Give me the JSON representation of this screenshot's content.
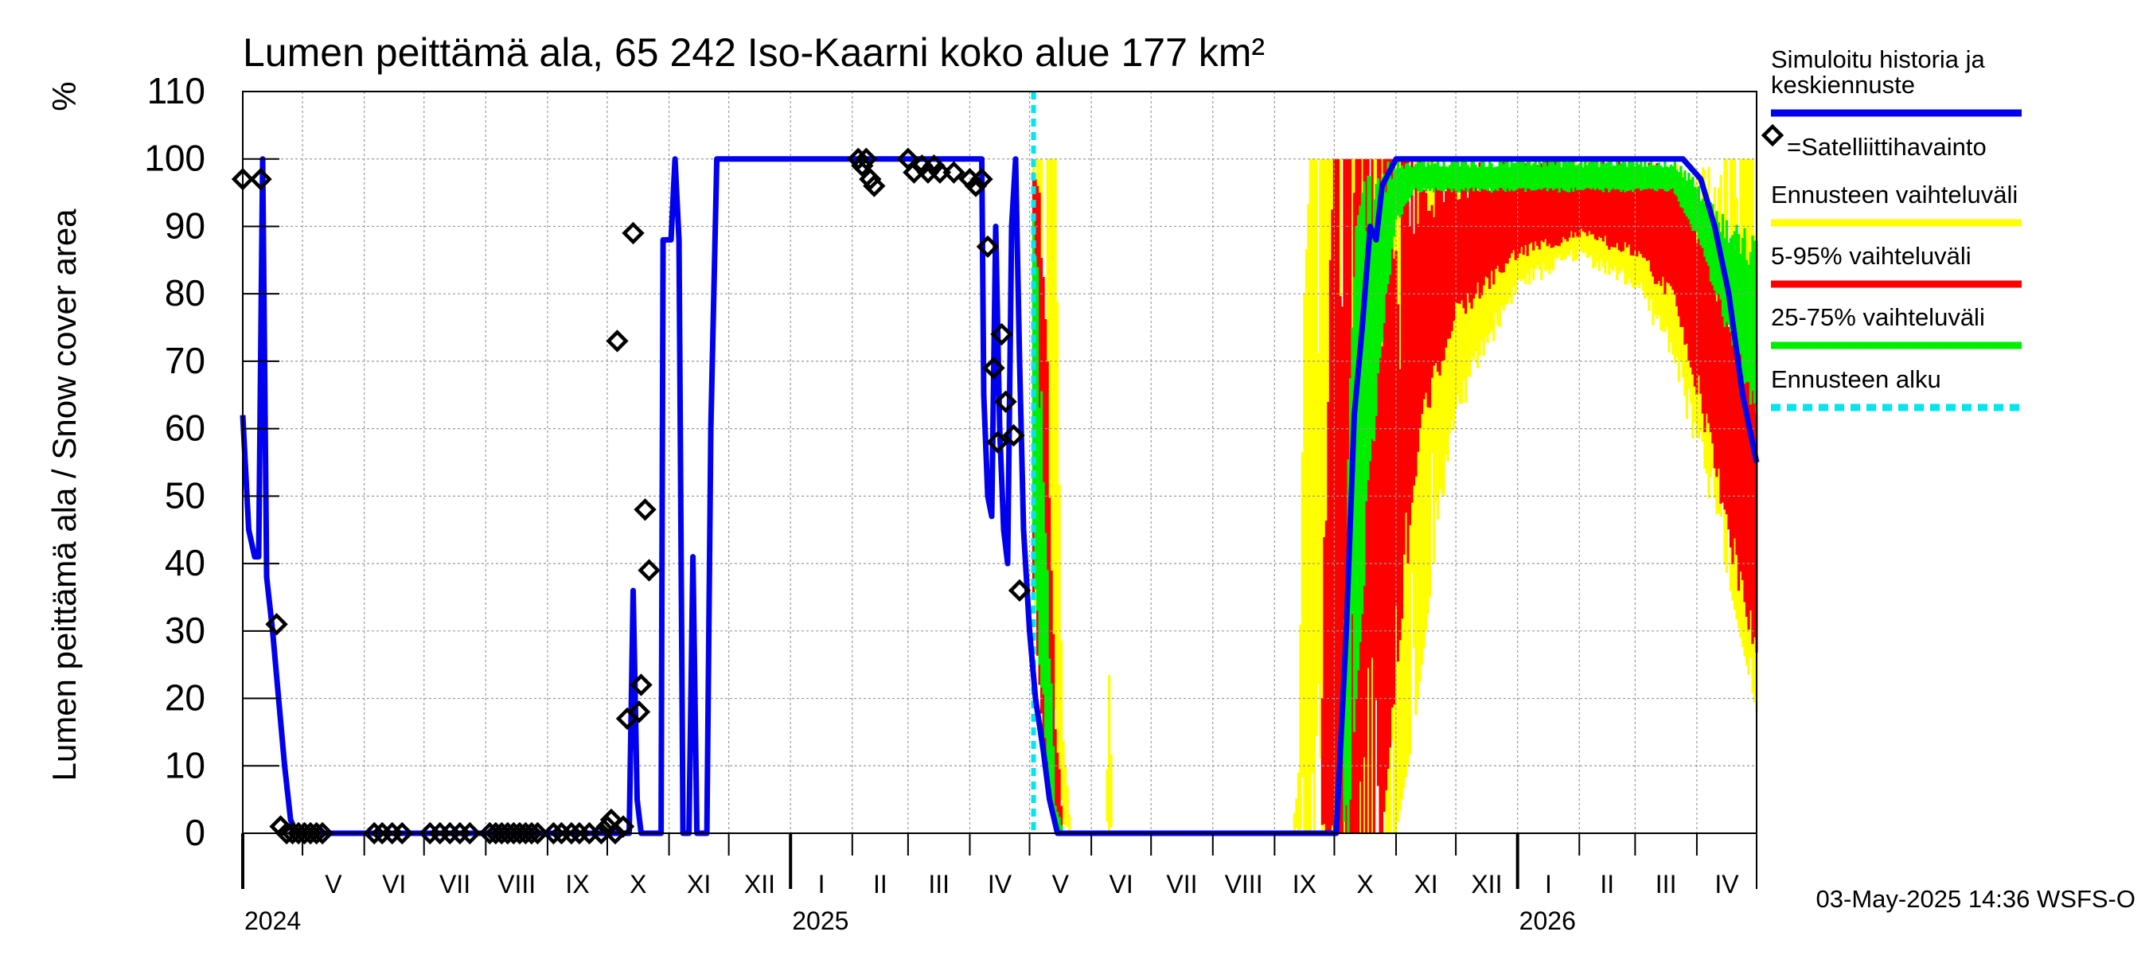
{
  "chart_data": {
    "type": "area",
    "title": "Lumen peittämä ala, 65 242 Iso-Kaarni koko alue 177 km²",
    "ylabel": "Lumen peittämä ala / Snow cover area",
    "yunit": "%",
    "ylim": [
      0,
      110
    ],
    "yticks": [
      0,
      10,
      20,
      30,
      40,
      50,
      60,
      70,
      80,
      90,
      100,
      110
    ],
    "xlim": [
      "2024-04-01",
      "2026-05-01"
    ],
    "grid": true,
    "legend_position": "right",
    "months": [
      {
        "label": "V",
        "start": "2024-05-01"
      },
      {
        "label": "VI",
        "start": "2024-06-01"
      },
      {
        "label": "VII",
        "start": "2024-07-01"
      },
      {
        "label": "VIII",
        "start": "2024-08-01"
      },
      {
        "label": "IX",
        "start": "2024-09-01"
      },
      {
        "label": "X",
        "start": "2024-10-01"
      },
      {
        "label": "XI",
        "start": "2024-11-01"
      },
      {
        "label": "XII",
        "start": "2024-12-01"
      },
      {
        "label": "I",
        "start": "2025-01-01"
      },
      {
        "label": "II",
        "start": "2025-02-01"
      },
      {
        "label": "III",
        "start": "2025-03-01"
      },
      {
        "label": "IV",
        "start": "2025-04-01"
      },
      {
        "label": "V",
        "start": "2025-05-01"
      },
      {
        "label": "VI",
        "start": "2025-06-01"
      },
      {
        "label": "VII",
        "start": "2025-07-01"
      },
      {
        "label": "VIII",
        "start": "2025-08-01"
      },
      {
        "label": "IX",
        "start": "2025-09-01"
      },
      {
        "label": "X",
        "start": "2025-10-01"
      },
      {
        "label": "XI",
        "start": "2025-11-01"
      },
      {
        "label": "XII",
        "start": "2025-12-01"
      },
      {
        "label": "I",
        "start": "2026-01-01"
      },
      {
        "label": "II",
        "start": "2026-02-01"
      },
      {
        "label": "III",
        "start": "2026-03-01"
      },
      {
        "label": "IV",
        "start": "2026-04-01"
      }
    ],
    "years": [
      {
        "label": "2024",
        "date": "2024-04-01"
      },
      {
        "label": "2025",
        "date": "2025-01-01"
      },
      {
        "label": "2026",
        "date": "2026-01-01"
      }
    ],
    "forecast_start": "2025-05-03",
    "series": [
      {
        "name": "Simuloitu historia ja keskiennuste",
        "color": "#0000ee",
        "points": [
          [
            "2024-04-01",
            62
          ],
          [
            "2024-04-04",
            45
          ],
          [
            "2024-04-07",
            41
          ],
          [
            "2024-04-09",
            41
          ],
          [
            "2024-04-11",
            100
          ],
          [
            "2024-04-13",
            38
          ],
          [
            "2024-04-16",
            30
          ],
          [
            "2024-04-19",
            20
          ],
          [
            "2024-04-22",
            10
          ],
          [
            "2024-04-25",
            2
          ],
          [
            "2024-04-28",
            0
          ],
          [
            "2024-10-12",
            0
          ],
          [
            "2024-10-14",
            36
          ],
          [
            "2024-10-16",
            5
          ],
          [
            "2024-10-18",
            0
          ],
          [
            "2024-10-28",
            0
          ],
          [
            "2024-10-29",
            88
          ],
          [
            "2024-11-02",
            88
          ],
          [
            "2024-11-04",
            100
          ],
          [
            "2024-11-06",
            88
          ],
          [
            "2024-11-08",
            0
          ],
          [
            "2024-11-11",
            0
          ],
          [
            "2024-11-13",
            41
          ],
          [
            "2024-11-15",
            0
          ],
          [
            "2024-11-20",
            0
          ],
          [
            "2024-11-22",
            60
          ],
          [
            "2024-11-25",
            100
          ],
          [
            "2025-04-05",
            100
          ],
          [
            "2025-04-07",
            100
          ],
          [
            "2025-04-08",
            65
          ],
          [
            "2025-04-10",
            50
          ],
          [
            "2025-04-12",
            47
          ],
          [
            "2025-04-14",
            90
          ],
          [
            "2025-04-16",
            60
          ],
          [
            "2025-04-18",
            45
          ],
          [
            "2025-04-20",
            40
          ],
          [
            "2025-04-22",
            90
          ],
          [
            "2025-04-24",
            100
          ],
          [
            "2025-04-26",
            70
          ],
          [
            "2025-04-28",
            45
          ],
          [
            "2025-05-01",
            30
          ],
          [
            "2025-05-04",
            20
          ],
          [
            "2025-05-08",
            12
          ],
          [
            "2025-05-11",
            5
          ],
          [
            "2025-05-15",
            0
          ],
          [
            "2025-09-27",
            0
          ],
          [
            "2025-10-02",
            0
          ],
          [
            "2025-10-07",
            30
          ],
          [
            "2025-10-11",
            62
          ],
          [
            "2025-10-15",
            75
          ],
          [
            "2025-10-19",
            90
          ],
          [
            "2025-10-22",
            88
          ],
          [
            "2025-10-25",
            96
          ],
          [
            "2025-11-01",
            100
          ],
          [
            "2026-03-25",
            100
          ],
          [
            "2026-04-03",
            97
          ],
          [
            "2026-04-10",
            90
          ],
          [
            "2026-04-17",
            80
          ],
          [
            "2026-04-24",
            65
          ],
          [
            "2026-05-01",
            55
          ]
        ]
      }
    ],
    "satellite_observations": {
      "name": "=Satelliittihavainto",
      "points": [
        [
          "2024-04-01",
          97
        ],
        [
          "2024-04-10",
          97
        ],
        [
          "2024-04-18",
          31
        ],
        [
          "2024-04-20",
          1
        ],
        [
          "2024-04-23",
          0
        ],
        [
          "2024-04-26",
          0
        ],
        [
          "2024-04-29",
          0
        ],
        [
          "2024-05-02",
          0
        ],
        [
          "2024-05-05",
          0
        ],
        [
          "2024-05-08",
          0
        ],
        [
          "2024-05-11",
          0
        ],
        [
          "2024-06-06",
          0
        ],
        [
          "2024-06-10",
          0
        ],
        [
          "2024-06-15",
          0
        ],
        [
          "2024-06-20",
          0
        ],
        [
          "2024-07-04",
          0
        ],
        [
          "2024-07-09",
          0
        ],
        [
          "2024-07-14",
          0
        ],
        [
          "2024-07-19",
          0
        ],
        [
          "2024-07-24",
          0
        ],
        [
          "2024-08-03",
          0
        ],
        [
          "2024-08-06",
          0
        ],
        [
          "2024-08-09",
          0
        ],
        [
          "2024-08-12",
          0
        ],
        [
          "2024-08-15",
          0
        ],
        [
          "2024-08-18",
          0
        ],
        [
          "2024-08-21",
          0
        ],
        [
          "2024-08-24",
          0
        ],
        [
          "2024-08-27",
          0
        ],
        [
          "2024-09-04",
          0
        ],
        [
          "2024-09-08",
          0
        ],
        [
          "2024-09-13",
          0
        ],
        [
          "2024-09-17",
          0
        ],
        [
          "2024-09-22",
          0
        ],
        [
          "2024-09-28",
          0
        ],
        [
          "2024-10-01",
          1
        ],
        [
          "2024-10-03",
          2
        ],
        [
          "2024-10-05",
          0
        ],
        [
          "2024-10-06",
          73
        ],
        [
          "2024-10-09",
          1
        ],
        [
          "2024-10-11",
          17
        ],
        [
          "2024-10-14",
          89
        ],
        [
          "2024-10-17",
          18
        ],
        [
          "2024-10-18",
          22
        ],
        [
          "2024-10-20",
          48
        ],
        [
          "2024-10-22",
          39
        ],
        [
          "2025-02-04",
          100
        ],
        [
          "2025-02-06",
          99
        ],
        [
          "2025-02-08",
          100
        ],
        [
          "2025-02-10",
          97
        ],
        [
          "2025-02-12",
          96
        ],
        [
          "2025-03-01",
          100
        ],
        [
          "2025-03-04",
          98
        ],
        [
          "2025-03-08",
          99
        ],
        [
          "2025-03-11",
          98
        ],
        [
          "2025-03-14",
          99
        ],
        [
          "2025-03-17",
          98
        ],
        [
          "2025-03-24",
          98
        ],
        [
          "2025-04-01",
          97
        ],
        [
          "2025-04-04",
          96
        ],
        [
          "2025-04-07",
          97
        ],
        [
          "2025-04-10",
          87
        ],
        [
          "2025-04-13",
          69
        ],
        [
          "2025-04-15",
          58
        ],
        [
          "2025-04-17",
          74
        ],
        [
          "2025-04-19",
          64
        ],
        [
          "2025-04-23",
          59
        ],
        [
          "2025-04-26",
          36
        ]
      ]
    },
    "bands": [
      {
        "name": "Ennusteen vaihteluväli",
        "color": "#ffff00",
        "points": [
          [
            "2025-05-03",
            100,
            38
          ],
          [
            "2025-05-06",
            100,
            25
          ],
          [
            "2025-05-10",
            100,
            8
          ],
          [
            "2025-05-14",
            100,
            0
          ],
          [
            "2025-05-18",
            15,
            0
          ],
          [
            "2025-05-22",
            0,
            0
          ],
          [
            "2025-06-08",
            0,
            0
          ],
          [
            "2025-06-10",
            25,
            0
          ],
          [
            "2025-06-12",
            0,
            0
          ],
          [
            "2025-09-10",
            0,
            0
          ],
          [
            "2025-09-13",
            10,
            0
          ],
          [
            "2025-09-16",
            80,
            0
          ],
          [
            "2025-09-19",
            100,
            0
          ],
          [
            "2025-10-10",
            100,
            0
          ],
          [
            "2025-11-01",
            100,
            0
          ],
          [
            "2025-11-10",
            100,
            15
          ],
          [
            "2025-11-20",
            100,
            40
          ],
          [
            "2025-12-01",
            100,
            60
          ],
          [
            "2025-12-15",
            100,
            70
          ],
          [
            "2026-01-01",
            100,
            80
          ],
          [
            "2026-02-01",
            100,
            85
          ],
          [
            "2026-03-01",
            100,
            80
          ],
          [
            "2026-03-20",
            100,
            70
          ],
          [
            "2026-04-01",
            100,
            55
          ],
          [
            "2026-04-15",
            100,
            40
          ],
          [
            "2026-05-01",
            100,
            18
          ]
        ]
      },
      {
        "name": "5-95% vaihteluväli",
        "color": "#ff0000",
        "points": [
          [
            "2025-05-03",
            98,
            35
          ],
          [
            "2025-05-06",
            95,
            22
          ],
          [
            "2025-05-10",
            70,
            5
          ],
          [
            "2025-05-14",
            20,
            0
          ],
          [
            "2025-05-18",
            0,
            0
          ],
          [
            "2025-09-24",
            0,
            0
          ],
          [
            "2025-09-27",
            70,
            0
          ],
          [
            "2025-10-01",
            100,
            0
          ],
          [
            "2025-10-25",
            100,
            0
          ],
          [
            "2025-11-05",
            100,
            35
          ],
          [
            "2025-11-15",
            100,
            60
          ],
          [
            "2025-12-01",
            100,
            75
          ],
          [
            "2026-01-01",
            100,
            85
          ],
          [
            "2026-02-01",
            100,
            88
          ],
          [
            "2026-03-01",
            100,
            85
          ],
          [
            "2026-03-20",
            100,
            78
          ],
          [
            "2026-04-01",
            95,
            65
          ],
          [
            "2026-04-15",
            85,
            45
          ],
          [
            "2026-05-01",
            80,
            22
          ]
        ]
      },
      {
        "name": "25-75% vaihteluväli",
        "color": "#00ee00",
        "points": [
          [
            "2025-05-03",
            95,
            38
          ],
          [
            "2025-05-06",
            85,
            25
          ],
          [
            "2025-05-10",
            40,
            8
          ],
          [
            "2025-05-14",
            5,
            0
          ],
          [
            "2025-05-18",
            0,
            0
          ],
          [
            "2025-10-05",
            0,
            0
          ],
          [
            "2025-10-08",
            60,
            0
          ],
          [
            "2025-10-12",
            90,
            20
          ],
          [
            "2025-10-18",
            100,
            45
          ],
          [
            "2025-10-24",
            100,
            70
          ],
          [
            "2025-11-01",
            100,
            90
          ],
          [
            "2025-11-10",
            100,
            95
          ],
          [
            "2026-03-20",
            100,
            95
          ],
          [
            "2026-04-01",
            97,
            88
          ],
          [
            "2026-04-15",
            92,
            75
          ],
          [
            "2026-05-01",
            90,
            60
          ]
        ]
      }
    ],
    "legend": [
      {
        "label": "Simuloitu historia ja keskiennuste",
        "style": "line",
        "color": "#0000ee"
      },
      {
        "label": "=Satelliittihavainto",
        "style": "marker",
        "color": "#000000"
      },
      {
        "label": "Ennusteen vaihteluväli",
        "style": "line",
        "color": "#ffff00"
      },
      {
        "label": "5-95% vaihteluväli",
        "style": "line",
        "color": "#ff0000"
      },
      {
        "label": "25-75% vaihteluväli",
        "style": "line",
        "color": "#00ee00"
      },
      {
        "label": "Ennusteen alku",
        "style": "dashed",
        "color": "#00e5ee"
      }
    ],
    "footer": "03-May-2025 14:36 WSFS-O"
  }
}
